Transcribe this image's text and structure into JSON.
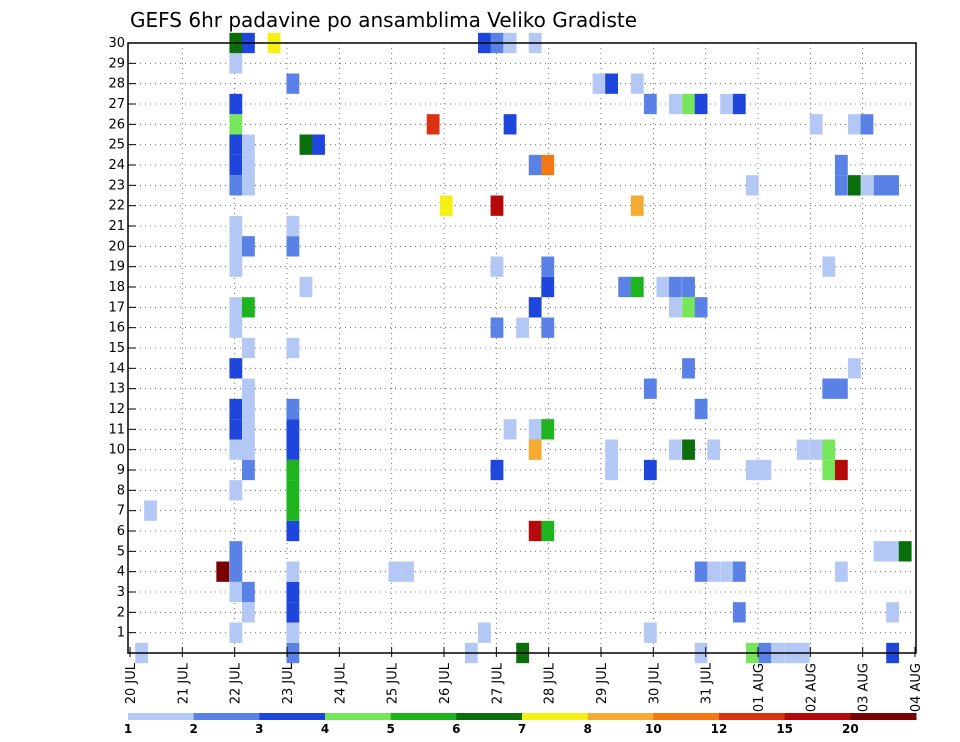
{
  "chart_data": {
    "type": "heatmap",
    "title": "GEFS 6hr padavine po ansamblima Veliko Gradiste",
    "x_tick_labels": [
      "20 JUL",
      "21 JUL",
      "22 JUL",
      "23 JUL",
      "24 JUL",
      "25 JUL",
      "26 JUL",
      "27 JUL",
      "28 JUL",
      "29 JUL",
      "30 JUL",
      "31 JUL",
      "01 AUG",
      "02 AUG",
      "03 AUG",
      "04 AUG"
    ],
    "y_tick_labels": [
      "1",
      "2",
      "3",
      "4",
      "5",
      "6",
      "7",
      "8",
      "9",
      "10",
      "11",
      "12",
      "13",
      "14",
      "15",
      "16",
      "17",
      "18",
      "19",
      "20",
      "21",
      "22",
      "23",
      "24",
      "25",
      "26",
      "27",
      "28",
      "29",
      "30"
    ],
    "xlim": [
      0,
      15
    ],
    "ylim": [
      0,
      30
    ],
    "grid": true,
    "colorbar": {
      "labels": [
        "1",
        "2",
        "3",
        "4",
        "5",
        "6",
        "7",
        "8",
        "10",
        "12",
        "15",
        "20"
      ],
      "colors": [
        "#b4c8f5",
        "#5a82e6",
        "#1e46dc",
        "#78e65a",
        "#1eb41e",
        "#0a6e0a",
        "#f5f014",
        "#f5aa32",
        "#f57814",
        "#dc3214",
        "#b40a0a",
        "#780000"
      ]
    },
    "cells": [
      {
        "x": 0.1,
        "y": 0,
        "c": 0
      },
      {
        "x": 0.27,
        "y": 7,
        "c": 0
      },
      {
        "x": 1.65,
        "y": 4,
        "c": 11
      },
      {
        "x": 1.9,
        "y": 1,
        "c": 0
      },
      {
        "x": 1.9,
        "y": 3,
        "c": 0
      },
      {
        "x": 1.9,
        "y": 4,
        "c": 1
      },
      {
        "x": 1.9,
        "y": 5,
        "c": 1
      },
      {
        "x": 1.9,
        "y": 8,
        "c": 0
      },
      {
        "x": 1.9,
        "y": 10,
        "c": 0
      },
      {
        "x": 1.9,
        "y": 11,
        "c": 2
      },
      {
        "x": 1.9,
        "y": 12,
        "c": 2
      },
      {
        "x": 1.9,
        "y": 14,
        "c": 2
      },
      {
        "x": 1.9,
        "y": 16,
        "c": 0
      },
      {
        "x": 1.9,
        "y": 17,
        "c": 0
      },
      {
        "x": 1.9,
        "y": 19,
        "c": 0
      },
      {
        "x": 1.9,
        "y": 20,
        "c": 0
      },
      {
        "x": 1.9,
        "y": 21,
        "c": 0
      },
      {
        "x": 1.9,
        "y": 23,
        "c": 1
      },
      {
        "x": 1.9,
        "y": 24,
        "c": 2
      },
      {
        "x": 1.9,
        "y": 25,
        "c": 2
      },
      {
        "x": 1.9,
        "y": 26,
        "c": 3
      },
      {
        "x": 1.9,
        "y": 27,
        "c": 2
      },
      {
        "x": 1.9,
        "y": 29,
        "c": 0
      },
      {
        "x": 1.9,
        "y": 30,
        "c": 5
      },
      {
        "x": 2.14,
        "y": 2,
        "c": 0
      },
      {
        "x": 2.14,
        "y": 3,
        "c": 1
      },
      {
        "x": 2.14,
        "y": 9,
        "c": 1
      },
      {
        "x": 2.14,
        "y": 10,
        "c": 0
      },
      {
        "x": 2.14,
        "y": 11,
        "c": 0
      },
      {
        "x": 2.14,
        "y": 12,
        "c": 0
      },
      {
        "x": 2.14,
        "y": 13,
        "c": 0
      },
      {
        "x": 2.14,
        "y": 15,
        "c": 0
      },
      {
        "x": 2.14,
        "y": 17,
        "c": 4
      },
      {
        "x": 2.14,
        "y": 20,
        "c": 1
      },
      {
        "x": 2.14,
        "y": 23,
        "c": 0
      },
      {
        "x": 2.14,
        "y": 24,
        "c": 0
      },
      {
        "x": 2.14,
        "y": 25,
        "c": 0
      },
      {
        "x": 2.14,
        "y": 30,
        "c": 2
      },
      {
        "x": 2.63,
        "y": 30,
        "c": 6
      },
      {
        "x": 2.99,
        "y": 0,
        "c": 1
      },
      {
        "x": 2.99,
        "y": 1,
        "c": 0
      },
      {
        "x": 2.99,
        "y": 2,
        "c": 2
      },
      {
        "x": 2.99,
        "y": 3,
        "c": 2
      },
      {
        "x": 2.99,
        "y": 4,
        "c": 0
      },
      {
        "x": 2.99,
        "y": 6,
        "c": 2
      },
      {
        "x": 2.99,
        "y": 7,
        "c": 4
      },
      {
        "x": 2.99,
        "y": 8,
        "c": 4
      },
      {
        "x": 2.99,
        "y": 9,
        "c": 4
      },
      {
        "x": 2.99,
        "y": 10,
        "c": 2
      },
      {
        "x": 2.99,
        "y": 11,
        "c": 2
      },
      {
        "x": 2.99,
        "y": 12,
        "c": 1
      },
      {
        "x": 2.99,
        "y": 15,
        "c": 0
      },
      {
        "x": 2.99,
        "y": 20,
        "c": 1
      },
      {
        "x": 2.99,
        "y": 21,
        "c": 0
      },
      {
        "x": 2.99,
        "y": 28,
        "c": 1
      },
      {
        "x": 3.24,
        "y": 18,
        "c": 0
      },
      {
        "x": 3.24,
        "y": 25,
        "c": 5
      },
      {
        "x": 3.48,
        "y": 25,
        "c": 2
      },
      {
        "x": 4.94,
        "y": 4,
        "c": 0
      },
      {
        "x": 5.18,
        "y": 4,
        "c": 0
      },
      {
        "x": 5.67,
        "y": 26,
        "c": 9
      },
      {
        "x": 5.92,
        "y": 22,
        "c": 6
      },
      {
        "x": 6.4,
        "y": 0,
        "c": 0
      },
      {
        "x": 6.65,
        "y": 1,
        "c": 0
      },
      {
        "x": 6.65,
        "y": 30,
        "c": 2
      },
      {
        "x": 6.89,
        "y": 9,
        "c": 2
      },
      {
        "x": 6.89,
        "y": 16,
        "c": 1
      },
      {
        "x": 6.89,
        "y": 19,
        "c": 0
      },
      {
        "x": 6.89,
        "y": 22,
        "c": 10
      },
      {
        "x": 6.89,
        "y": 30,
        "c": 1
      },
      {
        "x": 7.14,
        "y": 11,
        "c": 0
      },
      {
        "x": 7.14,
        "y": 26,
        "c": 2
      },
      {
        "x": 7.14,
        "y": 30,
        "c": 0
      },
      {
        "x": 7.38,
        "y": 0,
        "c": 5
      },
      {
        "x": 7.38,
        "y": 16,
        "c": 0
      },
      {
        "x": 7.62,
        "y": 6,
        "c": 10
      },
      {
        "x": 7.62,
        "y": 10,
        "c": 7
      },
      {
        "x": 7.62,
        "y": 11,
        "c": 0
      },
      {
        "x": 7.62,
        "y": 17,
        "c": 2
      },
      {
        "x": 7.62,
        "y": 24,
        "c": 1
      },
      {
        "x": 7.62,
        "y": 30,
        "c": 0
      },
      {
        "x": 7.86,
        "y": 6,
        "c": 4
      },
      {
        "x": 7.86,
        "y": 11,
        "c": 4
      },
      {
        "x": 7.86,
        "y": 16,
        "c": 1
      },
      {
        "x": 7.86,
        "y": 18,
        "c": 2
      },
      {
        "x": 7.86,
        "y": 19,
        "c": 1
      },
      {
        "x": 7.86,
        "y": 24,
        "c": 8
      },
      {
        "x": 8.84,
        "y": 28,
        "c": 0
      },
      {
        "x": 9.08,
        "y": 9,
        "c": 0
      },
      {
        "x": 9.08,
        "y": 10,
        "c": 0
      },
      {
        "x": 9.08,
        "y": 28,
        "c": 2
      },
      {
        "x": 9.33,
        "y": 18,
        "c": 1
      },
      {
        "x": 9.57,
        "y": 18,
        "c": 4
      },
      {
        "x": 9.57,
        "y": 22,
        "c": 7
      },
      {
        "x": 9.57,
        "y": 28,
        "c": 0
      },
      {
        "x": 9.82,
        "y": 1,
        "c": 0
      },
      {
        "x": 9.82,
        "y": 9,
        "c": 2
      },
      {
        "x": 9.82,
        "y": 13,
        "c": 1
      },
      {
        "x": 9.82,
        "y": 27,
        "c": 1
      },
      {
        "x": 10.06,
        "y": 18,
        "c": 0
      },
      {
        "x": 10.3,
        "y": 10,
        "c": 0
      },
      {
        "x": 10.3,
        "y": 17,
        "c": 0
      },
      {
        "x": 10.3,
        "y": 18,
        "c": 1
      },
      {
        "x": 10.3,
        "y": 27,
        "c": 0
      },
      {
        "x": 10.55,
        "y": 10,
        "c": 5
      },
      {
        "x": 10.55,
        "y": 14,
        "c": 1
      },
      {
        "x": 10.55,
        "y": 17,
        "c": 3
      },
      {
        "x": 10.55,
        "y": 18,
        "c": 1
      },
      {
        "x": 10.55,
        "y": 27,
        "c": 3
      },
      {
        "x": 10.79,
        "y": 0,
        "c": 0
      },
      {
        "x": 10.79,
        "y": 4,
        "c": 1
      },
      {
        "x": 10.79,
        "y": 12,
        "c": 1
      },
      {
        "x": 10.79,
        "y": 17,
        "c": 1
      },
      {
        "x": 10.79,
        "y": 27,
        "c": 2
      },
      {
        "x": 11.03,
        "y": 4,
        "c": 0
      },
      {
        "x": 11.03,
        "y": 10,
        "c": 0
      },
      {
        "x": 11.28,
        "y": 4,
        "c": 0
      },
      {
        "x": 11.28,
        "y": 27,
        "c": 0
      },
      {
        "x": 11.52,
        "y": 2,
        "c": 1
      },
      {
        "x": 11.52,
        "y": 4,
        "c": 1
      },
      {
        "x": 11.52,
        "y": 27,
        "c": 2
      },
      {
        "x": 11.77,
        "y": 0,
        "c": 3
      },
      {
        "x": 11.77,
        "y": 9,
        "c": 0
      },
      {
        "x": 11.77,
        "y": 23,
        "c": 0
      },
      {
        "x": 12.01,
        "y": 0,
        "c": 1
      },
      {
        "x": 12.01,
        "y": 9,
        "c": 0
      },
      {
        "x": 12.25,
        "y": 0,
        "c": 0
      },
      {
        "x": 12.5,
        "y": 0,
        "c": 0
      },
      {
        "x": 12.74,
        "y": 0,
        "c": 0
      },
      {
        "x": 12.74,
        "y": 10,
        "c": 0
      },
      {
        "x": 12.99,
        "y": 10,
        "c": 0
      },
      {
        "x": 12.99,
        "y": 26,
        "c": 0
      },
      {
        "x": 13.23,
        "y": 9,
        "c": 3
      },
      {
        "x": 13.23,
        "y": 10,
        "c": 3
      },
      {
        "x": 13.23,
        "y": 13,
        "c": 1
      },
      {
        "x": 13.23,
        "y": 19,
        "c": 0
      },
      {
        "x": 13.47,
        "y": 4,
        "c": 0
      },
      {
        "x": 13.47,
        "y": 9,
        "c": 10
      },
      {
        "x": 13.47,
        "y": 13,
        "c": 1
      },
      {
        "x": 13.47,
        "y": 23,
        "c": 1
      },
      {
        "x": 13.47,
        "y": 24,
        "c": 1
      },
      {
        "x": 13.72,
        "y": 14,
        "c": 0
      },
      {
        "x": 13.72,
        "y": 23,
        "c": 5
      },
      {
        "x": 13.72,
        "y": 26,
        "c": 0
      },
      {
        "x": 13.96,
        "y": 23,
        "c": 0
      },
      {
        "x": 13.96,
        "y": 26,
        "c": 1
      },
      {
        "x": 14.21,
        "y": 5,
        "c": 0
      },
      {
        "x": 14.21,
        "y": 23,
        "c": 1
      },
      {
        "x": 14.45,
        "y": 0,
        "c": 2
      },
      {
        "x": 14.45,
        "y": 2,
        "c": 0
      },
      {
        "x": 14.45,
        "y": 5,
        "c": 0
      },
      {
        "x": 14.45,
        "y": 23,
        "c": 1
      },
      {
        "x": 14.69,
        "y": 5,
        "c": 5
      }
    ]
  }
}
